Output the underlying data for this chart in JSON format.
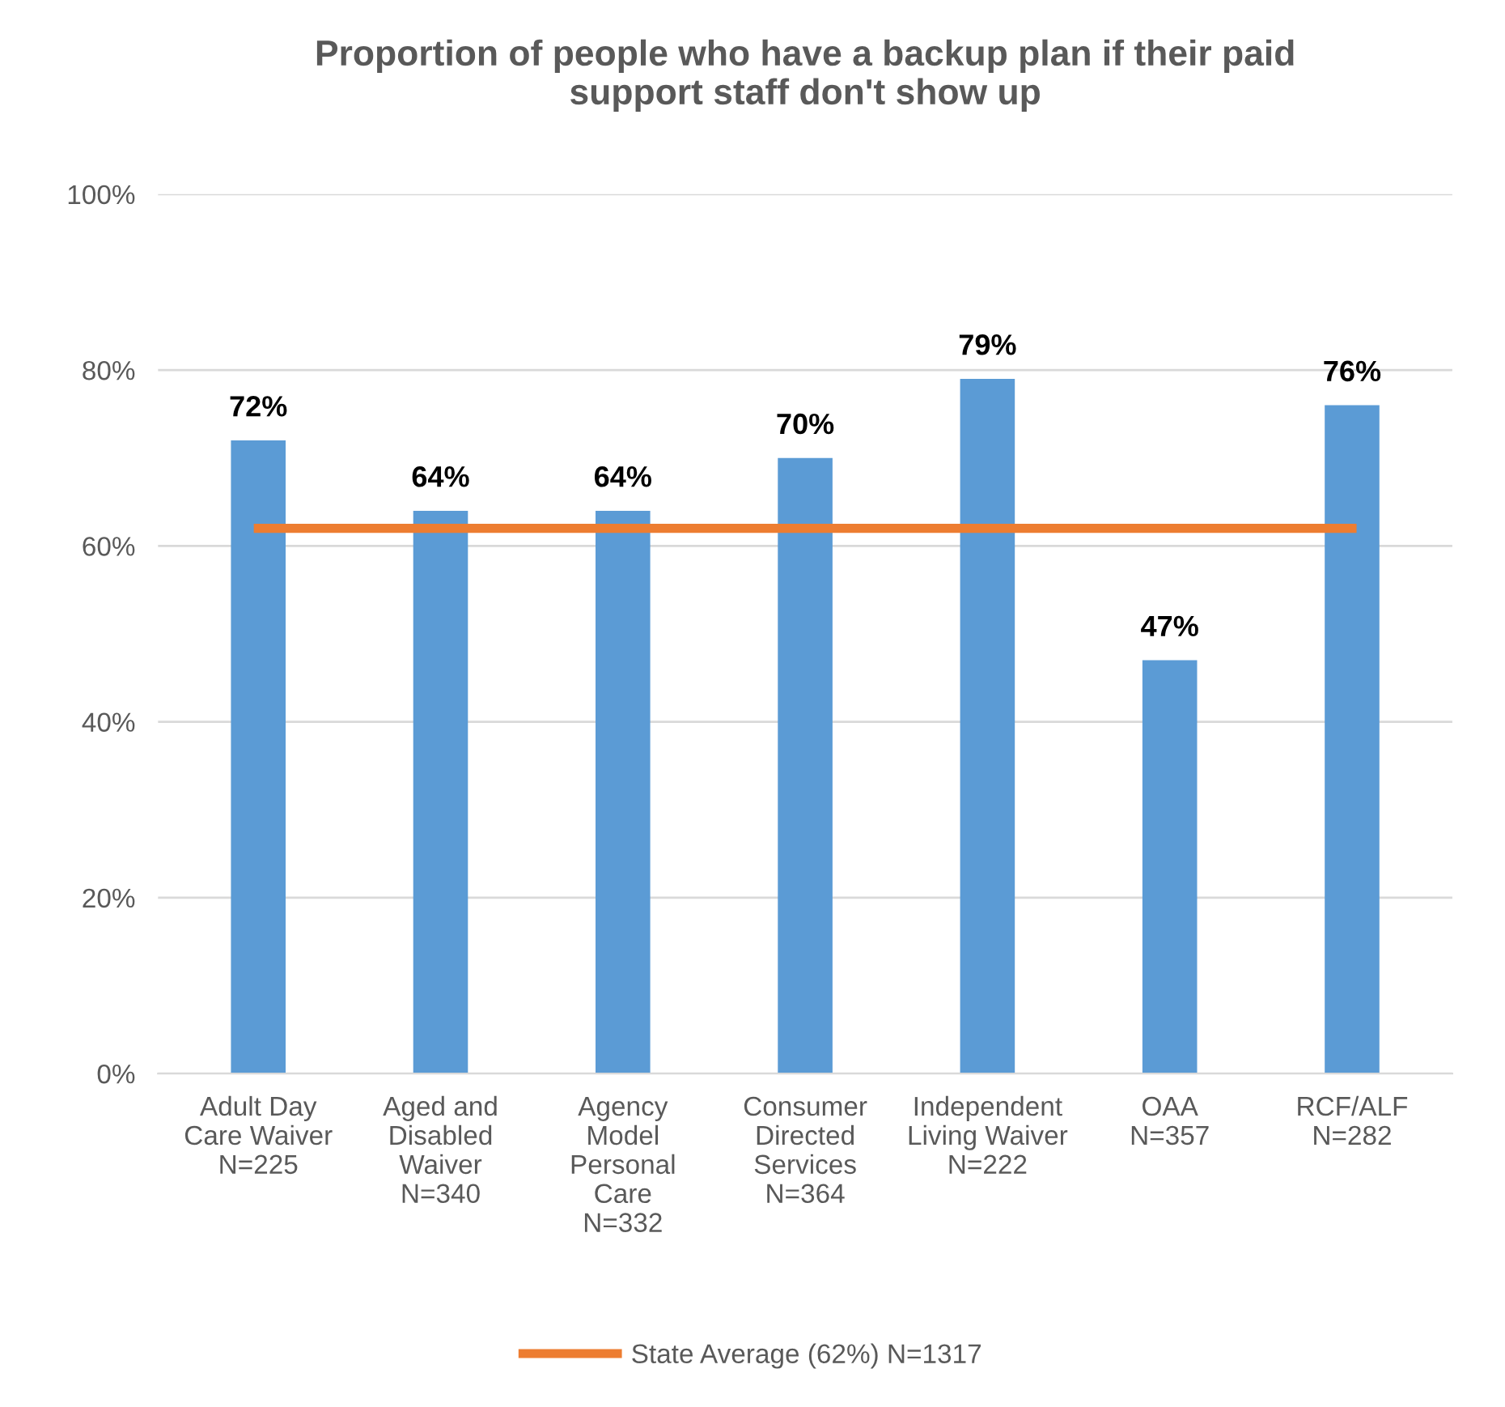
{
  "chart_data": {
    "type": "bar",
    "title": "Proportion of people who have a backup plan if their paid\nsupport staff don't show up",
    "categories": [
      "Adult Day\nCare Waiver\nN=225",
      "Aged and\nDisabled\nWaiver\nN=340",
      "Agency\nModel\nPersonal\nCare\nN=332",
      "Consumer\nDirected\nServices\nN=364",
      "Independent\nLiving Waiver\nN=222",
      "OAA\nN=357",
      "RCF/ALF\nN=282"
    ],
    "series": [
      {
        "color": "#5b9bd5",
        "values": [
          72,
          64,
          64,
          70,
          79,
          47,
          76
        ],
        "value_labels": [
          "72%",
          "64%",
          "64%",
          "70%",
          "79%",
          "47%",
          "76%"
        ]
      },
      {
        "type": "line",
        "name": "State Average (62%) N=1317",
        "color": "#ed7d31",
        "values": [
          62,
          62,
          62,
          62,
          62,
          62,
          62
        ]
      }
    ],
    "ylim": [
      0,
      100
    ],
    "yticks": [
      {
        "value": 0,
        "label": "0%"
      },
      {
        "value": 20,
        "label": "20%"
      },
      {
        "value": 40,
        "label": "40%"
      },
      {
        "value": 60,
        "label": "60%"
      },
      {
        "value": 80,
        "label": "80%"
      },
      {
        "value": 100,
        "label": "100%"
      }
    ],
    "grid": "y",
    "legend": "bottom",
    "marker": "none",
    "line_style": "solid"
  }
}
